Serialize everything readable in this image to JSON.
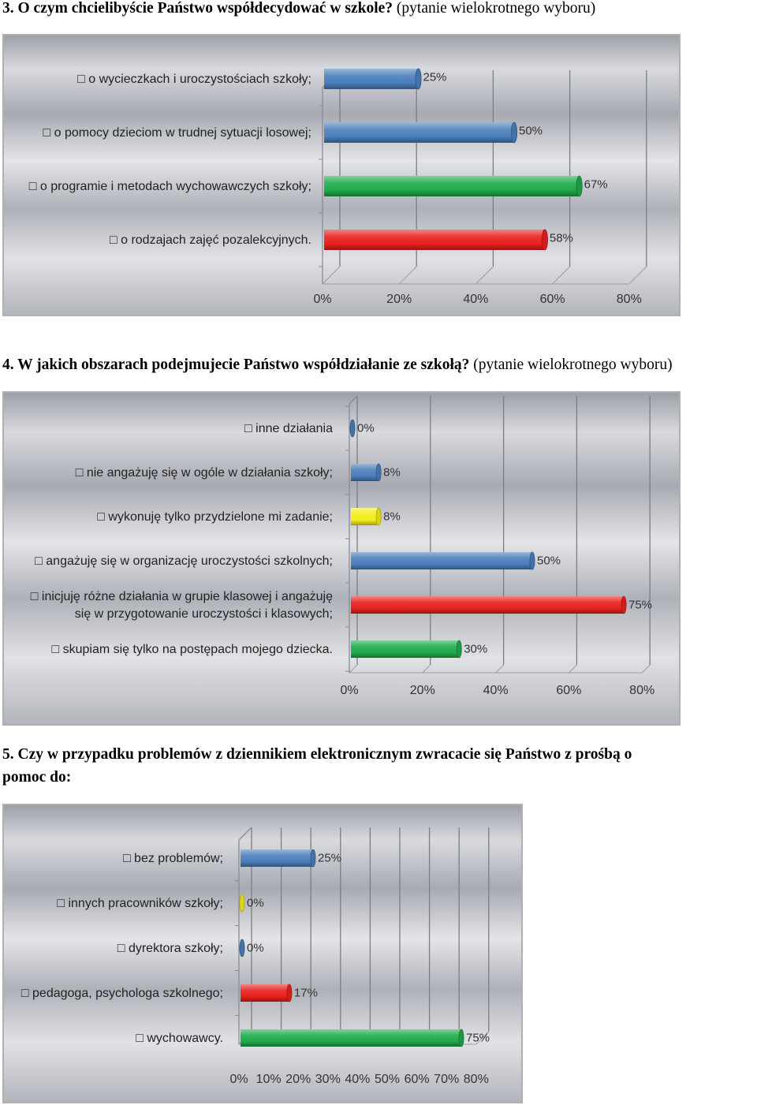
{
  "sections": [
    {
      "heading_bold": "3. O czym chcielibyście Państwo współdecydować w szkole?",
      "heading_paren": "(pytanie wielokrotnego wyboru)"
    },
    {
      "heading_bold": "4. W jakich obszarach podejmujecie Państwo współdziałanie ze szkołą?",
      "heading_paren": "(pytanie wielokrotnego wyboru)"
    },
    {
      "heading_line1": "5. Czy w przypadku problemów z dziennikiem elektronicznym zwracacie się Państwo z prośbą o",
      "heading_line2": "pomoc do:"
    }
  ],
  "colors": {
    "blue": "#4a7ebb",
    "green": "#1faa4a",
    "red": "#e8201e",
    "yellow": "#f2ee1a"
  },
  "chart_data": [
    {
      "type": "bar",
      "orientation": "horizontal",
      "categories": [
        "o wycieczkach i uroczystościach szkoły;",
        "o pomocy dzieciom w trudnej sytuacji losowej;",
        "o programie i metodach wychowawczych szkoły;",
        "o rodzajach zajęć pozalekcyjnych."
      ],
      "values": [
        25,
        50,
        67,
        58
      ],
      "value_labels": [
        "25%",
        "50%",
        "67%",
        "58%"
      ],
      "bar_colors": [
        "blue",
        "blue",
        "green",
        "red"
      ],
      "xlim": [
        0,
        80
      ],
      "ticks": [
        "0%",
        "20%",
        "40%",
        "60%",
        "80%"
      ],
      "grid": true
    },
    {
      "type": "bar",
      "orientation": "horizontal",
      "categories": [
        [
          "inne działania"
        ],
        [
          "nie angażuję się w ogóle w działania szkoły;"
        ],
        [
          "wykonuję tylko przydzielone mi zadanie;"
        ],
        [
          "angażuję się w organizację uroczystości szkolnych;"
        ],
        [
          "inicjuję różne działania w grupie klasowej i angażuję",
          "się w przygotowanie uroczystości i klasowych;"
        ],
        [
          "skupiam się tylko na postępach mojego dziecka."
        ]
      ],
      "values": [
        0,
        8,
        8,
        50,
        75,
        30
      ],
      "value_labels": [
        "0%",
        "8%",
        "8%",
        "50%",
        "75%",
        "30%"
      ],
      "bar_colors": [
        "blue",
        "blue",
        "yellow",
        "blue",
        "red",
        "green"
      ],
      "xlim": [
        0,
        80
      ],
      "ticks": [
        "0%",
        "20%",
        "40%",
        "60%",
        "80%"
      ],
      "grid": true
    },
    {
      "type": "bar",
      "orientation": "horizontal",
      "categories": [
        "bez problemów;",
        "innych pracowników szkoły;",
        "dyrektora szkoły;",
        "pedagoga, psychologa szkolnego;",
        "wychowawcy."
      ],
      "values": [
        25,
        0,
        0,
        17,
        75
      ],
      "value_labels": [
        "25%",
        "0%",
        "0%",
        "17%",
        "75%"
      ],
      "bar_colors": [
        "blue",
        "yellow",
        "blue",
        "red",
        "green"
      ],
      "xlim": [
        0,
        80
      ],
      "ticks": [
        "0%",
        "10%",
        "20%",
        "30%",
        "40%",
        "50%",
        "60%",
        "70%",
        "80%"
      ],
      "grid": true
    }
  ]
}
